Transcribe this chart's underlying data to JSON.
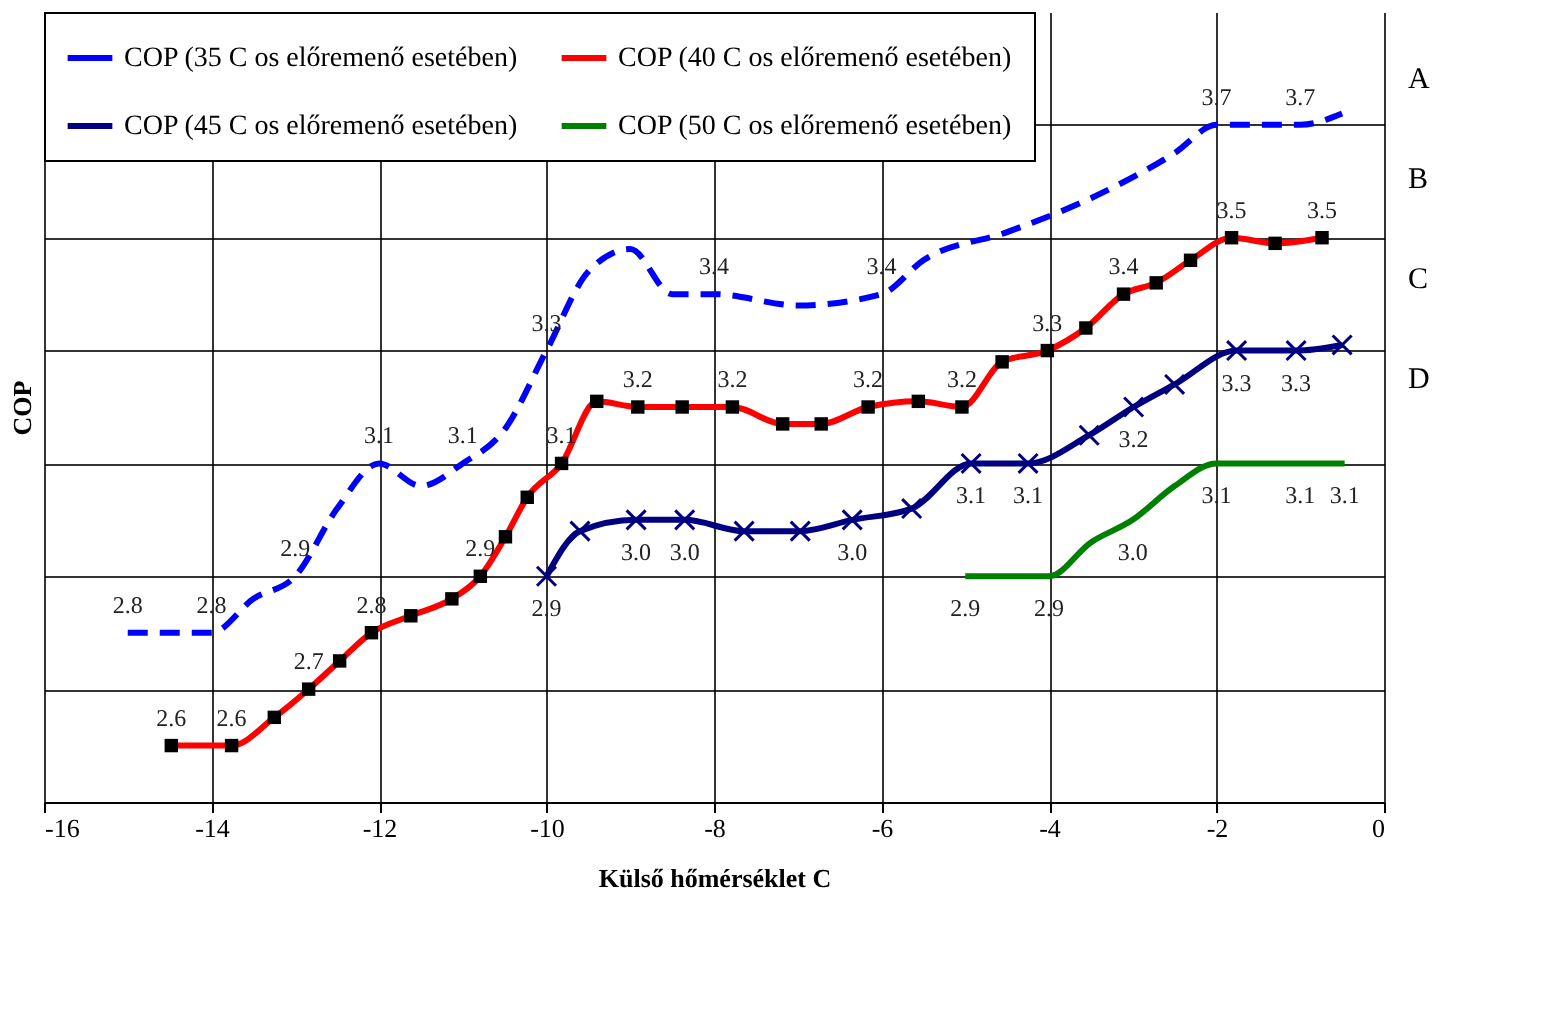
{
  "chart_data": {
    "type": "line",
    "xlabel": "Külső hőmérséklet C",
    "ylabel": "COP",
    "xlim": [
      -16,
      0
    ],
    "xticks": [
      -16,
      -14,
      -12,
      -10,
      -8,
      -6,
      -4,
      -2,
      0
    ],
    "ylim": [
      2.5,
      3.9
    ],
    "yticks": [
      {
        "value": 2.5,
        "label": null
      },
      {
        "value": 2.7,
        "label": null
      },
      {
        "value": 2.9,
        "label": null
      },
      {
        "value": 3.1,
        "label": null
      },
      {
        "value": 3.3,
        "label": null
      },
      {
        "value": 3.5,
        "label": null
      },
      {
        "value": 3.7,
        "label": null
      }
    ],
    "tick_labels": "x",
    "grid": true,
    "legend": "top left",
    "annotations": [
      "A",
      "B",
      "C",
      "D"
    ],
    "series": [
      {
        "name": "COP (35 C os előremenő esetében)",
        "color": "#0000ff",
        "line_style": "dashed",
        "marker": "none",
        "x": [
          -15,
          -14.5,
          -14,
          -13.5,
          -13,
          -12.5,
          -12,
          -11.5,
          -11,
          -10.5,
          -10,
          -9.5,
          -9,
          -8.5,
          -8,
          -7,
          -6,
          -5.5,
          -4.5,
          -3.5,
          -2.5,
          -2,
          -1,
          -0.5
        ],
        "values": [
          2.8,
          2.8,
          2.8,
          2.86,
          2.9,
          3.02,
          3.1,
          3.06,
          3.1,
          3.16,
          3.3,
          3.44,
          3.48,
          3.4,
          3.4,
          3.38,
          3.4,
          3.46,
          3.51,
          3.57,
          3.65,
          3.7,
          3.7,
          3.72
        ],
        "value_labels": [
          "2.8",
          null,
          "2.8",
          null,
          "2.9",
          null,
          "3.1",
          null,
          "3.1",
          null,
          "3.3",
          null,
          null,
          null,
          "3.4",
          null,
          "3.4",
          null,
          null,
          null,
          null,
          "3.7",
          "3.7",
          null
        ]
      },
      {
        "name": "COP (40 C os előremenő esetében)",
        "color": "#ff0000",
        "line_style": "solid",
        "marker": "square",
        "x": [
          -14.48,
          -13.76,
          -13.25,
          -12.84,
          -12.47,
          -12.09,
          -11.62,
          -11.13,
          -10.79,
          -10.49,
          -10.23,
          -9.82,
          -9.4,
          -8.91,
          -8.38,
          -7.78,
          -7.18,
          -6.72,
          -6.16,
          -5.56,
          -5.04,
          -4.56,
          -4.02,
          -3.56,
          -3.11,
          -2.72,
          -2.31,
          -1.82,
          -1.3,
          -0.74
        ],
        "values": [
          2.6,
          2.6,
          2.65,
          2.7,
          2.75,
          2.8,
          2.83,
          2.86,
          2.9,
          2.97,
          3.04,
          3.1,
          3.21,
          3.2,
          3.2,
          3.2,
          3.17,
          3.17,
          3.2,
          3.21,
          3.2,
          3.28,
          3.3,
          3.34,
          3.4,
          3.42,
          3.46,
          3.5,
          3.49,
          3.5
        ],
        "value_labels": [
          "2.6",
          "2.6",
          null,
          "2.7",
          null,
          "2.8",
          null,
          null,
          "2.9",
          null,
          null,
          "3.1",
          null,
          "3.2",
          null,
          "3.2",
          null,
          null,
          "3.2",
          null,
          "3.2",
          null,
          "3.3",
          null,
          "3.4",
          null,
          null,
          "3.5",
          null,
          "3.5"
        ]
      },
      {
        "name": "COP (45 C os előremenő esetében)",
        "color": "#000080",
        "line_style": "solid",
        "marker": "cross",
        "x": [
          -10,
          -9.6,
          -8.93,
          -8.35,
          -7.64,
          -6.97,
          -6.35,
          -5.64,
          -4.93,
          -4.25,
          -3.52,
          -2.99,
          -2.5,
          -1.76,
          -1.05,
          -0.5
        ],
        "values": [
          2.9,
          2.98,
          3.0,
          3.0,
          2.98,
          2.98,
          3.0,
          3.02,
          3.1,
          3.1,
          3.15,
          3.2,
          3.24,
          3.3,
          3.3,
          3.31
        ],
        "value_labels": [
          "2.9",
          null,
          "3.0",
          "3.0",
          null,
          null,
          "3.0",
          null,
          "3.1",
          "3.1",
          null,
          "3.2",
          null,
          "3.3",
          "3.3",
          null
        ]
      },
      {
        "name": "COP (50 C os előremenő esetében)",
        "color": "#008000",
        "line_style": "solid",
        "marker": "none",
        "x": [
          -5,
          -4,
          -3.5,
          -3,
          -2.5,
          -2,
          -1.5,
          -1,
          -0.47
        ],
        "values": [
          2.9,
          2.9,
          2.96,
          3.0,
          3.06,
          3.1,
          3.1,
          3.1,
          3.1
        ],
        "value_labels": [
          "2.9",
          "2.9",
          null,
          "3.0",
          null,
          "3.1",
          null,
          "3.1",
          "3.1"
        ]
      }
    ]
  }
}
